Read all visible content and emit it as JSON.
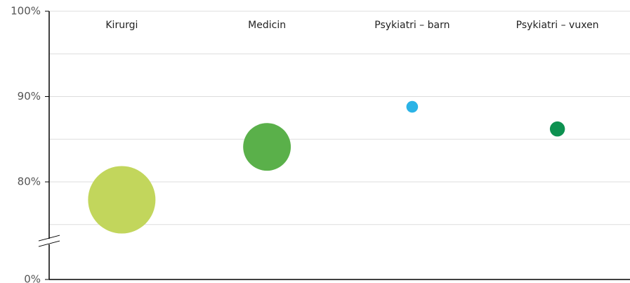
{
  "chart_data": {
    "type": "bubble",
    "categories": [
      "Kirurgi",
      "Medicin",
      "Psykiatri – barn",
      "Psykiatri – vuxen"
    ],
    "series": [
      {
        "values": [
          77.9,
          84.1,
          88.8,
          86.2
        ],
        "sizes": [
          100,
          50,
          3,
          5
        ],
        "colors": [
          "#c2d65c",
          "#5ab04a",
          "#2bb3e6",
          "#0d9150"
        ]
      }
    ],
    "ylim": [
      0,
      100
    ],
    "yticks": [
      {
        "value": 0,
        "label": "0%"
      },
      {
        "value": 80,
        "label": "80%"
      },
      {
        "value": 90,
        "label": "90%"
      },
      {
        "value": 100,
        "label": "100%"
      }
    ],
    "y_minor_ticks": [
      75,
      85,
      95
    ],
    "y_break": 73,
    "grid": true
  }
}
